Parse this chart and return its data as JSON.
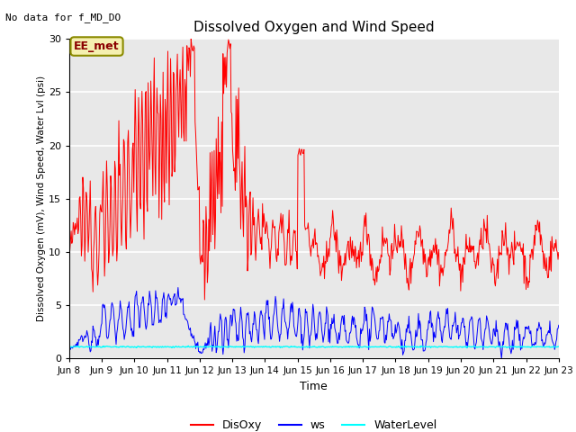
{
  "title": "Dissolved Oxygen and Wind Speed",
  "xlabel": "Time",
  "ylabel": "Dissolved Oxygen (mV), Wind Speed, Water Lvl (psi)",
  "top_left_text": "No data for f_MD_DO",
  "annotation_text": "EE_met",
  "ylim": [
    0,
    30
  ],
  "xlim_days": [
    8,
    23
  ],
  "xtick_labels": [
    "Jun 8",
    "Jun 9",
    "Jun 10",
    "Jun 11",
    "Jun 12",
    "Jun 13",
    "Jun 14",
    "Jun 15",
    "Jun 16",
    "Jun 17",
    "Jun 18",
    "Jun 19",
    "Jun 20",
    "Jun 21",
    "Jun 22",
    "Jun 23"
  ],
  "xtick_positions": [
    8,
    9,
    10,
    11,
    12,
    13,
    14,
    15,
    16,
    17,
    18,
    19,
    20,
    21,
    22,
    23
  ],
  "ytick_labels": [
    "0",
    "5",
    "10",
    "15",
    "20",
    "25",
    "30"
  ],
  "ytick_positions": [
    0,
    5,
    10,
    15,
    20,
    25,
    30
  ],
  "legend_labels": [
    "DisOxy",
    "ws",
    "WaterLevel"
  ],
  "legend_colors": [
    "red",
    "blue",
    "cyan"
  ],
  "bg_color": "#e8e8e8",
  "grid_color": "white",
  "figsize": [
    6.4,
    4.8
  ],
  "dpi": 100
}
